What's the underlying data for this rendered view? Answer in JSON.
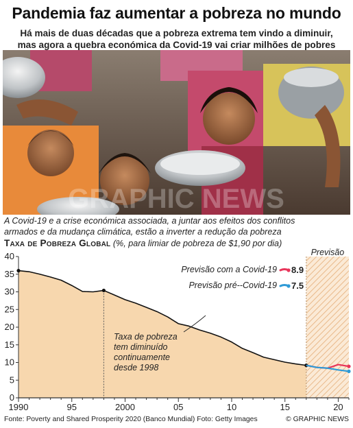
{
  "header": {
    "title": "Pandemia faz aumentar a pobreza no mundo",
    "subtitle_line1": "Há mais de duas décadas que a pobreza extrema tem vindo a diminuir,",
    "subtitle_line2": "mas agora a quebra económica da Covid-19 vai criar milhões de pobres"
  },
  "photo": {
    "icon": "children-holding-bowls-photo",
    "watermark": "GRAPHIC NEWS"
  },
  "intro": {
    "line1": "A Covid-19 e a crise económica associada, a juntar aos efeitos dos conflitos",
    "line2": "armados e da mudança climática, estão a inverter a redução da pobreza"
  },
  "chart_title": "Taxa de Pobreza Global",
  "chart_unit": " (%, para limiar de pobreza de $1,90 por dia)",
  "chart_data": {
    "type": "line",
    "title": "Taxa de Pobreza Global",
    "subtitle": "(%, para limiar de pobreza de $1,90 por dia)",
    "xlim": [
      1990,
      2021
    ],
    "ylim": [
      0,
      40
    ],
    "x_ticks": [
      1990,
      1995,
      2000,
      2005,
      2010,
      2015,
      2020
    ],
    "x_tick_labels": [
      "1990",
      "95",
      "2000",
      "05",
      "10",
      "15",
      "20"
    ],
    "y_ticks": [
      0,
      5,
      10,
      15,
      20,
      25,
      30,
      35,
      40
    ],
    "y_tick_labels": [
      "0",
      "5",
      "10",
      "15",
      "20",
      "25",
      "30",
      "35",
      "40"
    ],
    "grid": false,
    "forecast_region": {
      "from": 2017,
      "to": 2021,
      "label": "Previsão"
    },
    "marker_year": 1998,
    "series": [
      {
        "name": "Taxa de pobreza",
        "color": "#111111",
        "x": [
          1990,
          1991,
          1992,
          1993,
          1994,
          1995,
          1996,
          1997,
          1998,
          1999,
          2000,
          2001,
          2002,
          2003,
          2004,
          2005,
          2006,
          2007,
          2008,
          2009,
          2010,
          2011,
          2012,
          2013,
          2014,
          2015,
          2016,
          2017
        ],
        "y": [
          36.0,
          35.7,
          35.0,
          34.2,
          33.3,
          31.8,
          30.1,
          30.0,
          30.4,
          29.1,
          27.8,
          26.8,
          25.6,
          24.4,
          22.9,
          21.0,
          20.3,
          19.2,
          18.3,
          17.2,
          15.8,
          14.0,
          12.8,
          11.5,
          10.8,
          10.1,
          9.6,
          9.2
        ]
      },
      {
        "name": "Previsão com a Covid-19",
        "color": "#e8355a",
        "x": [
          2017,
          2018,
          2019,
          2020,
          2021
        ],
        "y": [
          9.2,
          8.6,
          8.4,
          9.4,
          8.9
        ]
      },
      {
        "name": "Previsão pré--Covid-19",
        "color": "#2e9ad6",
        "x": [
          2017,
          2018,
          2019,
          2020,
          2021
        ],
        "y": [
          9.2,
          8.6,
          8.4,
          7.9,
          7.5
        ]
      }
    ],
    "legend": [
      {
        "label": "Previsão com a Covid-19",
        "value": "8.9",
        "color": "#e8355a"
      },
      {
        "label": "Previsão pré--Covid-19",
        "value": "7.5",
        "color": "#2e9ad6"
      }
    ],
    "annotation": {
      "lines": [
        "Taxa de pobreza",
        "tem diminuído",
        "continuamente",
        "desde 1998"
      ]
    },
    "colors": {
      "area": "#f7d7ae",
      "forecast_hatch": "#e9b98a",
      "axis": "#333333"
    }
  },
  "footer": {
    "source": "Fonte: Poverty and Shared Prosperity 2020 (Banco Mundial)  Foto: Getty Images",
    "brand": "© GRAPHIC NEWS"
  }
}
